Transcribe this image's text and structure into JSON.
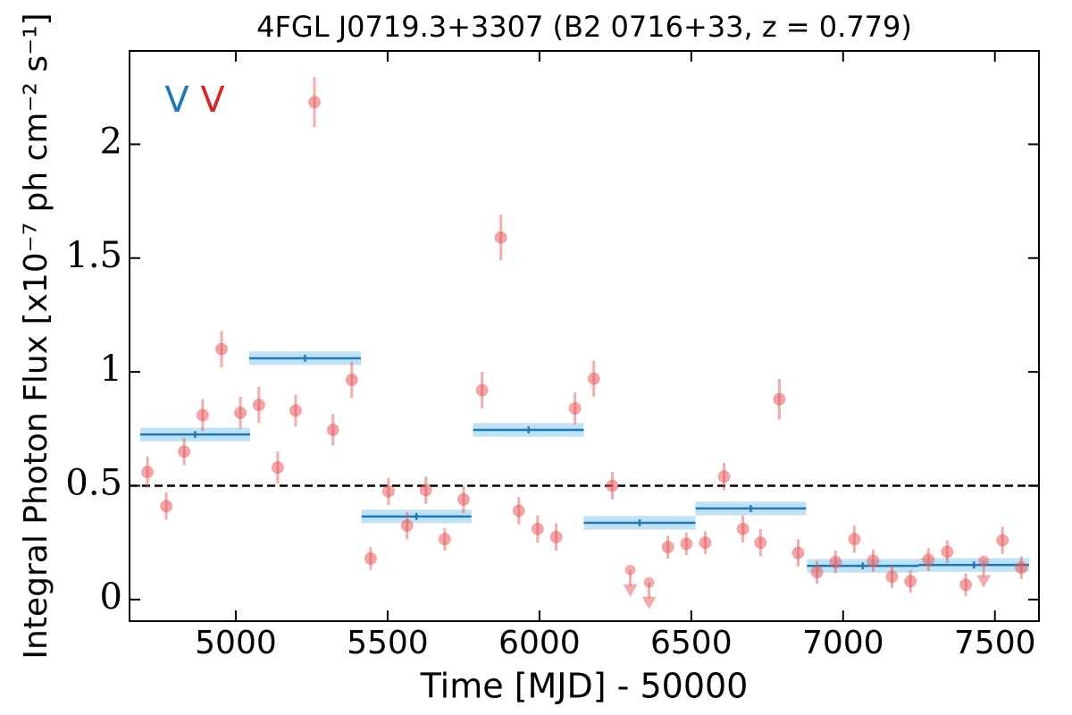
{
  "chart_data": {
    "type": "scatter",
    "title": "4FGL J0719.3+3307 (B2 0716+33, z = 0.779)",
    "x_label": "Time [MJD] - 50000",
    "y_label": "Integral Photon Flux [x10⁻⁷ ph cm⁻² s⁻¹]",
    "annotations": [
      {
        "text": "V",
        "color": "#1f77b4"
      },
      {
        "text": "V",
        "color": "#d62728"
      }
    ],
    "xlim": [
      4650,
      7645
    ],
    "ylim": [
      -0.095,
      2.41
    ],
    "xticks": [
      5000,
      5500,
      6000,
      6500,
      7000,
      7500
    ],
    "yticks": [
      0,
      0.5,
      1,
      1.5,
      2
    ],
    "reference_line": 0.5,
    "points": {
      "color": "#e8595c",
      "x": [
        4709,
        4771,
        4830,
        4891,
        4953,
        5015,
        5076,
        5138,
        5197,
        5259,
        5320,
        5382,
        5444,
        5503,
        5564,
        5626,
        5688,
        5750,
        5811,
        5873,
        5932,
        5994,
        6055,
        6117,
        6179,
        6240,
        6423,
        6484,
        6546,
        6608,
        6670,
        6728,
        6790,
        6852,
        6914,
        6975,
        7037,
        7099,
        7161,
        7222,
        7281,
        7343,
        7404,
        7525,
        7587
      ],
      "values": [
        0.56,
        0.41,
        0.65,
        0.81,
        1.1,
        0.82,
        0.855,
        0.58,
        0.83,
        2.185,
        0.745,
        0.965,
        0.18,
        0.475,
        0.325,
        0.48,
        0.265,
        0.44,
        0.92,
        1.59,
        0.39,
        0.31,
        0.275,
        0.84,
        0.97,
        0.5,
        0.23,
        0.245,
        0.25,
        0.54,
        0.31,
        0.25,
        0.88,
        0.205,
        0.12,
        0.165,
        0.265,
        0.17,
        0.1,
        0.08,
        0.175,
        0.21,
        0.065,
        0.26,
        0.14
      ],
      "err": [
        0.07,
        0.06,
        0.06,
        0.07,
        0.08,
        0.07,
        0.08,
        0.07,
        0.07,
        0.11,
        0.07,
        0.08,
        0.05,
        0.06,
        0.06,
        0.06,
        0.05,
        0.06,
        0.08,
        0.1,
        0.06,
        0.06,
        0.06,
        0.07,
        0.08,
        0.06,
        0.05,
        0.05,
        0.05,
        0.06,
        0.06,
        0.06,
        0.09,
        0.06,
        0.05,
        0.05,
        0.06,
        0.05,
        0.05,
        0.05,
        0.05,
        0.05,
        0.05,
        0.06,
        0.05
      ]
    },
    "upper_limits": {
      "color": "#e8595c",
      "x": [
        6299,
        6361,
        7463
      ],
      "values": [
        0.13,
        0.075,
        0.17
      ]
    },
    "binned": {
      "color": "#1f77b4",
      "band_color": "#bfe3f5",
      "x": [
        4866,
        5228,
        5595,
        5964,
        6330,
        6696,
        7065,
        7431
      ],
      "xerr": [
        181,
        184,
        181,
        182,
        184,
        182,
        184,
        182
      ],
      "values": [
        0.725,
        1.06,
        0.365,
        0.745,
        0.337,
        0.4,
        0.148,
        0.152
      ],
      "err": [
        0.03,
        0.03,
        0.03,
        0.03,
        0.03,
        0.03,
        0.03,
        0.03
      ]
    }
  }
}
